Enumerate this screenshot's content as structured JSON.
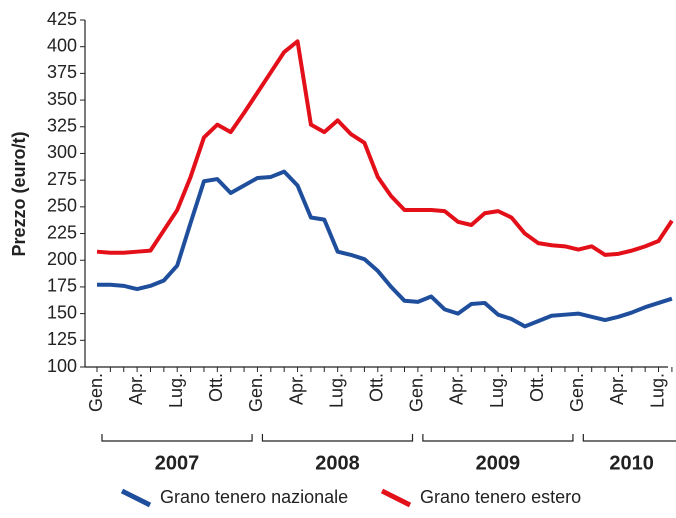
{
  "chart_data": {
    "type": "line",
    "y_label": "Prezzo (euro/t)",
    "categories": [
      "Gen.",
      null,
      null,
      "Apr.",
      null,
      null,
      "Lug.",
      null,
      null,
      "Ott.",
      null,
      null,
      "Gen.",
      null,
      null,
      "Apr.",
      null,
      null,
      "Lug.",
      null,
      null,
      "Ott.",
      null,
      null,
      "Gen.",
      null,
      null,
      "Apr.",
      null,
      null,
      "Lug.",
      null,
      null,
      "Ott.",
      null,
      null,
      "Gen.",
      null,
      null,
      "Apr.",
      null,
      null,
      "Lug.",
      null
    ],
    "years": [
      "2007",
      "2008",
      "2009",
      "2010"
    ],
    "series": [
      {
        "name": "Grano tenero nazionale",
        "color": "#1f4e9c",
        "values": [
          177,
          177,
          176,
          173,
          176,
          181,
          195,
          235,
          274,
          276,
          263,
          270,
          277,
          278,
          283,
          270,
          240,
          238,
          208,
          205,
          201,
          190,
          175,
          162,
          161,
          166,
          154,
          150,
          159,
          160,
          149,
          145,
          138,
          143,
          148,
          149,
          150,
          147,
          144,
          147,
          151,
          156,
          160,
          164
        ]
      },
      {
        "name": "Grano tenero estero",
        "color": "#e3101a",
        "values": [
          208,
          207,
          207,
          208,
          209,
          228,
          247,
          278,
          315,
          327,
          320,
          338,
          357,
          376,
          395,
          405,
          327,
          320,
          331,
          318,
          310,
          278,
          260,
          247,
          247,
          247,
          246,
          236,
          233,
          244,
          246,
          240,
          225,
          216,
          214,
          213,
          210,
          213,
          205,
          206,
          209,
          213,
          218,
          237
        ]
      }
    ],
    "ylim": [
      100,
      425
    ],
    "yticks": [
      100,
      125,
      150,
      175,
      200,
      225,
      250,
      275,
      300,
      325,
      350,
      375,
      400,
      425
    ]
  }
}
